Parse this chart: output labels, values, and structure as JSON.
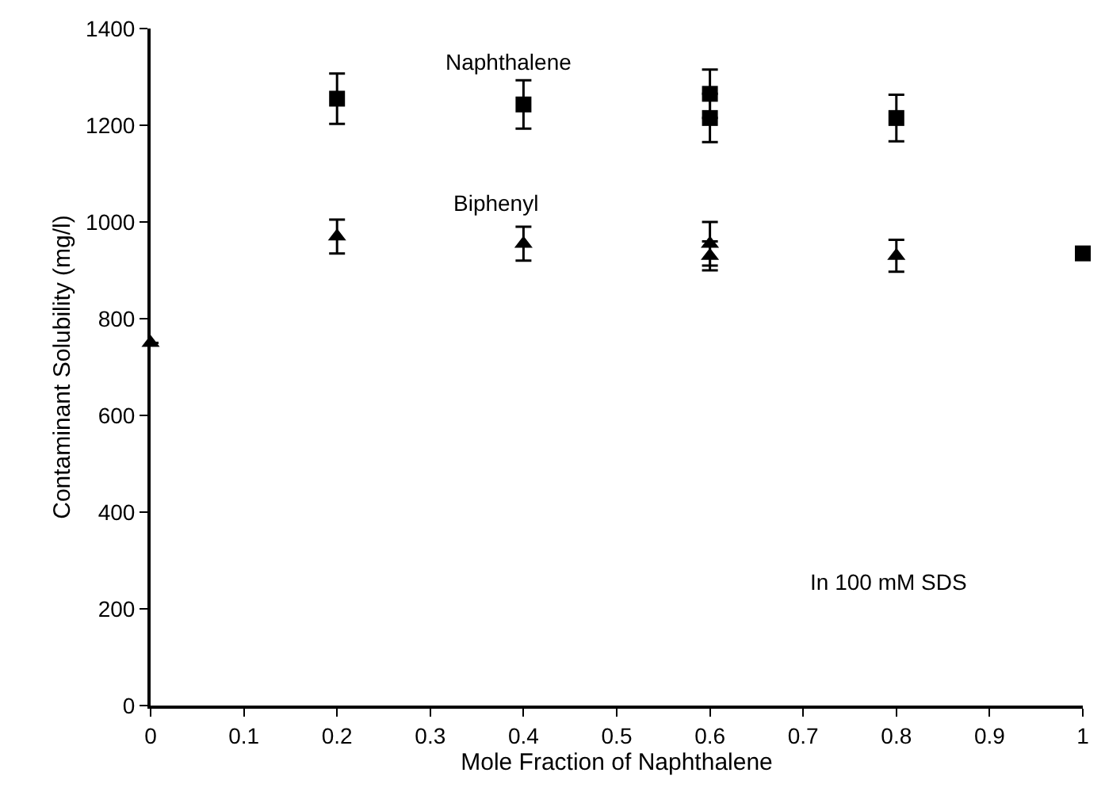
{
  "chart_data": {
    "type": "scatter",
    "xlabel": "Mole Fraction of Naphthalene",
    "ylabel": "Contaminant Solubility (mg/l)",
    "series": [
      {
        "name": "Naphthalene",
        "color": "#000000",
        "marker": "square",
        "x": [
          0.2,
          0.4,
          0.6,
          0.6,
          0.8,
          1.0
        ],
        "values": [
          1255,
          1243,
          1265,
          1215,
          1215,
          935
        ],
        "errors": [
          52,
          50,
          50,
          50,
          48,
          null
        ]
      },
      {
        "name": "Biphenyl",
        "color": "#000000",
        "marker": "triangle",
        "x": [
          0.0,
          0.2,
          0.4,
          0.6,
          0.6,
          0.8
        ],
        "values": [
          750,
          970,
          955,
          955,
          930,
          930
        ],
        "errors": [
          null,
          35,
          35,
          45,
          30,
          33
        ]
      }
    ],
    "annotations": [
      "In 100 mM SDS"
    ],
    "xlim": [
      0,
      1
    ],
    "xticks": [
      0,
      0.1,
      0.2,
      0.3,
      0.4,
      0.5,
      0.6,
      0.7,
      0.8,
      0.9,
      1
    ],
    "ylim": [
      0,
      1400
    ],
    "yticks": [
      0,
      200,
      400,
      600,
      800,
      1000,
      1200,
      1400
    ],
    "grid": false,
    "legend": false
  }
}
